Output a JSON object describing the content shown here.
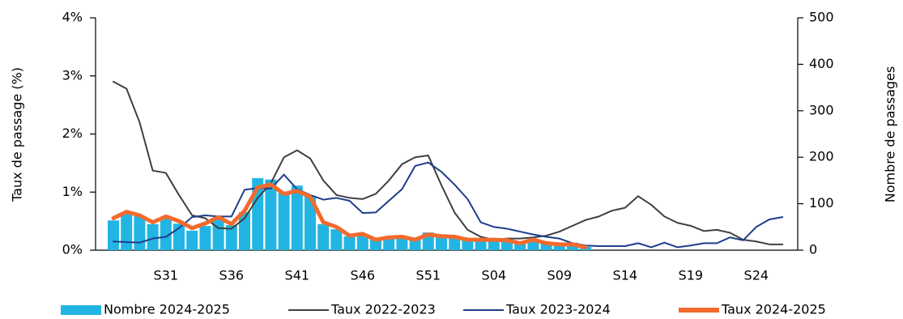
{
  "chart_data": {
    "type": "combo",
    "y_label": "Taux de passage (%)",
    "y2_label": "Nombre de passages",
    "categories": [
      null,
      null,
      null,
      null,
      "S31",
      null,
      null,
      null,
      null,
      "S36",
      null,
      null,
      null,
      null,
      "S41",
      null,
      null,
      null,
      null,
      "S46",
      null,
      null,
      null,
      null,
      "S51",
      null,
      null,
      null,
      null,
      "S04",
      null,
      null,
      null,
      null,
      "S09",
      null,
      null,
      null,
      null,
      "S14",
      null,
      null,
      null,
      null,
      "S19",
      null,
      null,
      null,
      null,
      "S24",
      null,
      null
    ],
    "ylim": [
      0,
      4
    ],
    "yticks": [
      {
        "value": 0,
        "label": "0%"
      },
      {
        "value": 1,
        "label": "1%"
      },
      {
        "value": 2,
        "label": "2%"
      },
      {
        "value": 3,
        "label": "3%"
      },
      {
        "value": 4,
        "label": "4%"
      }
    ],
    "y2lim": [
      0,
      500
    ],
    "y2ticks": [
      0,
      100,
      200,
      300,
      400,
      500
    ],
    "legend": "bottom",
    "series": [
      {
        "name": "Nombre 2024-2025",
        "type": "bar",
        "axis": "y2",
        "color": "#22b5e3",
        "values": [
          64,
          80,
          73,
          56,
          71,
          57,
          42,
          52,
          66,
          54,
          82,
          155,
          152,
          124,
          139,
          117,
          56,
          45,
          30,
          33,
          23,
          26,
          28,
          23,
          38,
          31,
          30,
          24,
          24,
          24,
          23,
          17,
          23,
          17,
          14,
          16,
          7,
          null,
          null,
          null,
          null,
          null,
          null,
          null,
          null,
          null,
          null,
          null,
          null,
          null,
          null,
          null
        ]
      },
      {
        "name": "Taux 2022-2023",
        "type": "line",
        "color": "#404040",
        "values": [
          2.9,
          2.78,
          2.2,
          1.37,
          1.33,
          0.95,
          0.6,
          0.55,
          0.38,
          0.37,
          0.55,
          0.9,
          1.15,
          1.6,
          1.72,
          1.58,
          1.2,
          0.95,
          0.9,
          0.88,
          0.97,
          1.2,
          1.48,
          1.6,
          1.63,
          1.12,
          0.65,
          0.35,
          0.23,
          0.18,
          0.2,
          0.2,
          0.22,
          0.25,
          0.32,
          0.42,
          0.52,
          0.58,
          0.68,
          0.73,
          0.93,
          0.78,
          0.58,
          0.47,
          0.42,
          0.33,
          0.35,
          0.3,
          0.18,
          0.15,
          0.1,
          0.1
        ]
      },
      {
        "name": "Taux 2023-2024",
        "type": "line",
        "color": "#1f3d8c",
        "values": [
          0.15,
          0.14,
          0.13,
          0.2,
          0.23,
          0.38,
          0.57,
          0.6,
          0.58,
          0.58,
          1.04,
          1.07,
          1.06,
          1.3,
          1.05,
          0.95,
          0.87,
          0.9,
          0.85,
          0.64,
          0.65,
          0.85,
          1.05,
          1.45,
          1.51,
          1.35,
          1.13,
          0.88,
          0.48,
          0.4,
          0.37,
          0.32,
          0.27,
          0.23,
          0.2,
          0.12,
          0.08,
          0.07,
          0.07,
          0.07,
          0.12,
          0.05,
          0.13,
          0.05,
          0.08,
          0.12,
          0.12,
          0.22,
          0.17,
          0.4,
          0.53,
          0.57
        ]
      },
      {
        "name": "Taux 2024-2025",
        "type": "thick-line",
        "color": "#f26a2e",
        "values": [
          0.55,
          0.66,
          0.6,
          0.48,
          0.58,
          0.5,
          0.38,
          0.46,
          0.57,
          0.45,
          0.68,
          1.08,
          1.13,
          0.97,
          1.02,
          0.92,
          0.48,
          0.4,
          0.25,
          0.28,
          0.18,
          0.22,
          0.23,
          0.18,
          0.27,
          0.24,
          0.23,
          0.18,
          0.18,
          0.18,
          0.17,
          0.12,
          0.18,
          0.12,
          0.1,
          0.1,
          0.05,
          null,
          null,
          null,
          null,
          null,
          null,
          null,
          null,
          null,
          null,
          null,
          null,
          null,
          null,
          null
        ]
      }
    ]
  }
}
